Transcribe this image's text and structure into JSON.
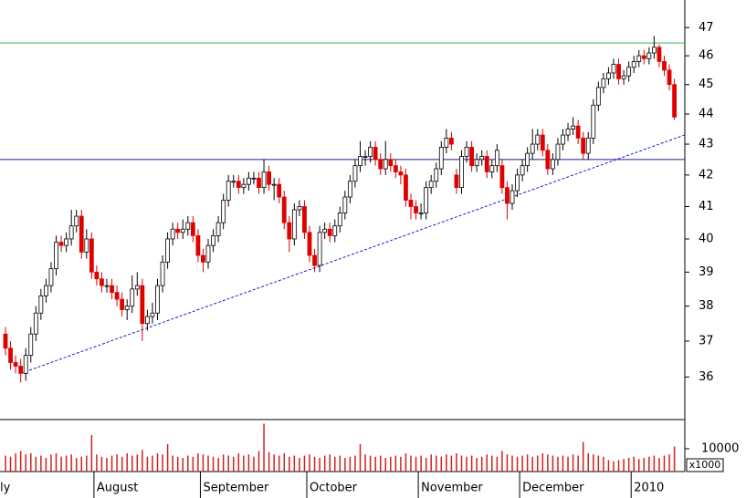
{
  "chart_data": {
    "type": "candlestick",
    "log_scale": true,
    "categories": [
      "ly",
      null,
      null,
      null,
      null,
      null,
      null,
      null,
      null,
      null,
      null,
      null,
      null,
      null,
      null,
      null,
      null,
      null,
      "August",
      null,
      null,
      null,
      null,
      null,
      null,
      null,
      null,
      null,
      null,
      null,
      null,
      null,
      null,
      null,
      null,
      null,
      null,
      null,
      null,
      "September",
      null,
      null,
      null,
      null,
      null,
      null,
      null,
      null,
      null,
      null,
      null,
      null,
      null,
      null,
      null,
      null,
      null,
      null,
      null,
      null,
      "October",
      null,
      null,
      null,
      null,
      null,
      null,
      null,
      null,
      null,
      null,
      null,
      null,
      null,
      null,
      null,
      null,
      null,
      null,
      null,
      null,
      null,
      "November",
      null,
      null,
      null,
      null,
      null,
      null,
      null,
      null,
      null,
      null,
      null,
      null,
      null,
      null,
      null,
      null,
      null,
      null,
      null,
      "December",
      null,
      null,
      null,
      null,
      null,
      null,
      null,
      null,
      null,
      null,
      null,
      null,
      null,
      null,
      null,
      null,
      null,
      null,
      null,
      null,
      null,
      "2010",
      null,
      null,
      null,
      null,
      null,
      null,
      null,
      null
    ],
    "open": [
      37.2,
      36.8,
      36.4,
      36.3,
      36.1,
      36.6,
      37.2,
      37.8,
      38.3,
      38.6,
      39.1,
      39.9,
      39.8,
      40.0,
      40.4,
      40.7,
      39.6,
      40.0,
      39.0,
      38.8,
      38.6,
      38.6,
      38.4,
      38.2,
      37.9,
      38.0,
      38.5,
      38.6,
      37.5,
      37.7,
      37.8,
      38.6,
      39.3,
      40.0,
      40.3,
      40.2,
      40.3,
      40.5,
      40.1,
      39.5,
      39.3,
      39.8,
      40.1,
      40.5,
      41.2,
      41.8,
      41.8,
      41.6,
      41.7,
      41.9,
      41.9,
      41.6,
      42.1,
      41.7,
      41.7,
      41.3,
      40.5,
      40.0,
      40.9,
      41.0,
      40.2,
      39.5,
      39.2,
      40.2,
      40.3,
      40.1,
      40.4,
      40.8,
      41.3,
      41.8,
      42.3,
      42.6,
      42.6,
      42.9,
      42.5,
      42.2,
      42.5,
      42.3,
      42.1,
      42.0,
      41.2,
      41.0,
      40.8,
      40.8,
      41.6,
      41.8,
      42.2,
      42.9,
      43.2,
      42.0,
      41.6,
      42.6,
      42.9,
      42.3,
      42.5,
      42.6,
      42.1,
      42.3,
      42.3,
      41.6,
      41.1,
      41.5,
      42.0,
      42.3,
      42.7,
      43.0,
      43.3,
      42.8,
      42.2,
      42.5,
      43.0,
      43.3,
      43.5,
      43.6,
      43.2,
      42.7,
      43.2,
      44.3,
      44.9,
      45.2,
      45.4,
      45.7,
      45.2,
      45.3,
      45.6,
      45.8,
      46.0,
      45.9,
      46.1,
      46.3,
      45.8,
      45.5,
      45.0
    ],
    "high": [
      37.4,
      37.0,
      36.6,
      36.5,
      36.8,
      37.4,
      38.0,
      38.5,
      38.8,
      39.3,
      40.1,
      40.1,
      40.2,
      40.9,
      40.9,
      40.9,
      40.3,
      40.2,
      39.2,
      39.0,
      38.8,
      38.8,
      38.6,
      38.4,
      38.2,
      38.9,
      39.0,
      38.8,
      37.9,
      38.1,
      38.8,
      39.5,
      40.2,
      40.5,
      40.5,
      40.6,
      40.7,
      40.7,
      40.3,
      39.7,
      40.0,
      40.3,
      40.7,
      41.4,
      42.0,
      42.0,
      42.0,
      41.9,
      42.1,
      42.1,
      42.1,
      42.5,
      42.3,
      41.9,
      41.9,
      41.5,
      40.7,
      41.1,
      41.2,
      41.2,
      40.4,
      39.7,
      40.4,
      40.5,
      40.5,
      40.6,
      41.0,
      41.5,
      42.0,
      42.5,
      43.1,
      42.8,
      43.1,
      43.1,
      42.7,
      43.1,
      42.7,
      42.5,
      42.3,
      42.2,
      41.4,
      41.2,
      41.1,
      41.8,
      42.0,
      42.4,
      43.1,
      43.5,
      43.4,
      42.2,
      42.8,
      43.1,
      43.1,
      42.7,
      42.8,
      42.8,
      42.5,
      43.0,
      42.5,
      41.8,
      41.7,
      42.2,
      42.5,
      42.9,
      43.5,
      43.5,
      43.5,
      43.0,
      42.7,
      43.2,
      43.5,
      43.7,
      43.9,
      43.8,
      43.4,
      43.4,
      44.5,
      45.1,
      45.4,
      45.6,
      45.9,
      45.9,
      45.5,
      45.8,
      46.0,
      46.2,
      46.2,
      46.3,
      46.7,
      46.4,
      46.0,
      45.7,
      45.2
    ],
    "low": [
      36.6,
      36.2,
      36.1,
      35.85,
      35.9,
      36.4,
      37.0,
      37.6,
      38.1,
      38.4,
      38.9,
      39.6,
      39.6,
      39.8,
      40.2,
      39.4,
      39.4,
      38.8,
      38.6,
      38.4,
      38.4,
      38.2,
      38.0,
      37.7,
      37.6,
      37.8,
      38.3,
      37.0,
      37.3,
      37.5,
      37.6,
      38.4,
      39.1,
      39.8,
      40.0,
      40.0,
      40.1,
      39.9,
      39.3,
      39.0,
      39.1,
      39.6,
      39.9,
      40.3,
      41.0,
      41.6,
      41.4,
      41.4,
      41.5,
      41.7,
      41.4,
      41.4,
      41.5,
      41.2,
      41.1,
      40.3,
      39.6,
      39.8,
      40.7,
      40.0,
      39.3,
      39.0,
      39.0,
      40.0,
      39.9,
      39.9,
      40.2,
      40.6,
      41.1,
      41.6,
      42.1,
      42.3,
      42.4,
      42.3,
      42.0,
      42.0,
      42.1,
      41.9,
      41.7,
      41.0,
      40.6,
      40.6,
      40.6,
      40.6,
      41.4,
      41.6,
      42.0,
      42.7,
      42.8,
      41.4,
      41.4,
      42.4,
      42.1,
      42.1,
      42.3,
      41.9,
      41.9,
      42.1,
      41.4,
      40.6,
      40.9,
      41.3,
      41.8,
      42.1,
      42.5,
      42.8,
      42.6,
      42.0,
      42.0,
      42.3,
      42.8,
      43.1,
      43.3,
      43.0,
      42.5,
      42.5,
      43.0,
      44.1,
      44.7,
      45.0,
      45.2,
      45.0,
      45.0,
      45.1,
      45.4,
      45.6,
      45.7,
      45.7,
      45.9,
      45.6,
      45.3,
      44.8,
      43.8
    ],
    "close": [
      36.8,
      36.4,
      36.3,
      36.1,
      36.6,
      37.2,
      37.8,
      38.3,
      38.6,
      39.1,
      39.9,
      39.8,
      40.0,
      40.4,
      40.7,
      39.6,
      40.0,
      39.0,
      38.8,
      38.6,
      38.6,
      38.4,
      38.2,
      37.9,
      38.0,
      38.5,
      38.6,
      37.5,
      37.7,
      37.8,
      38.6,
      39.3,
      40.0,
      40.3,
      40.2,
      40.3,
      40.5,
      40.1,
      39.5,
      39.3,
      39.8,
      40.1,
      40.5,
      41.2,
      41.8,
      41.8,
      41.6,
      41.7,
      41.9,
      41.9,
      41.6,
      42.1,
      41.7,
      41.7,
      41.3,
      40.5,
      40.0,
      40.9,
      41.0,
      40.2,
      39.5,
      39.2,
      40.2,
      40.3,
      40.1,
      40.4,
      40.8,
      41.3,
      41.8,
      42.3,
      42.6,
      42.6,
      42.9,
      42.5,
      42.2,
      42.5,
      42.3,
      42.1,
      42.0,
      41.2,
      41.0,
      40.8,
      40.8,
      41.6,
      41.8,
      42.2,
      42.9,
      43.2,
      43.0,
      41.6,
      42.6,
      42.9,
      42.3,
      42.5,
      42.6,
      42.1,
      42.3,
      42.8,
      41.6,
      41.1,
      41.5,
      42.0,
      42.3,
      42.7,
      43.0,
      43.3,
      42.8,
      42.2,
      42.5,
      43.0,
      43.3,
      43.5,
      43.6,
      43.2,
      42.7,
      43.2,
      44.3,
      44.9,
      45.2,
      45.4,
      45.7,
      45.2,
      45.3,
      45.6,
      45.8,
      46.0,
      45.9,
      46.1,
      46.3,
      45.8,
      45.5,
      45.0,
      43.9
    ],
    "volume": [
      7000,
      6500,
      8000,
      9000,
      7500,
      8000,
      6500,
      7000,
      6000,
      7500,
      8000,
      6500,
      7000,
      7500,
      6000,
      6500,
      7000,
      16000,
      7500,
      6500,
      6000,
      7000,
      7500,
      6500,
      8000,
      7000,
      7500,
      9500,
      6500,
      7000,
      8000,
      7500,
      12000,
      7000,
      6500,
      6000,
      7000,
      6500,
      8000,
      7500,
      7000,
      6500,
      6000,
      7500,
      7000,
      6500,
      8000,
      7000,
      7500,
      6500,
      9000,
      21000,
      8500,
      7500,
      7000,
      8000,
      6500,
      7000,
      6000,
      7000,
      7500,
      6500,
      6000,
      7000,
      7500,
      6500,
      7000,
      6000,
      6500,
      7000,
      12000,
      7500,
      7000,
      6500,
      7000,
      6000,
      6500,
      7000,
      6500,
      8000,
      7000,
      6500,
      7000,
      6000,
      7500,
      7000,
      6500,
      7500,
      7000,
      8000,
      7000,
      6500,
      7000,
      6000,
      6500,
      7500,
      7000,
      6500,
      9000,
      7500,
      7000,
      6500,
      7000,
      7500,
      6500,
      7000,
      8000,
      7500,
      7000,
      6500,
      7000,
      6500,
      7500,
      7000,
      13000,
      8000,
      7500,
      7000,
      6500,
      5000,
      4500,
      5000,
      5500,
      6000,
      6500,
      5500,
      6000,
      6500,
      7000,
      6000,
      7000,
      7500,
      11000
    ],
    "up_color": "#ffffff",
    "down_color": "#e00000",
    "volume_color": "#d02020",
    "ylim": [
      34.85,
      48
    ],
    "yticks": [
      36,
      37,
      38,
      39,
      40,
      41,
      42,
      43,
      44,
      45,
      46,
      47
    ],
    "volume_lim": [
      0,
      22800
    ],
    "volume_ticks": [
      10000
    ],
    "volume_unit_label": "x1000",
    "hlines": [
      {
        "value": 46.45,
        "color": "#3cb043"
      },
      {
        "value": 42.5,
        "color": "#1a1a9a"
      }
    ],
    "trendline": {
      "x": [
        3,
        134
      ],
      "y": [
        36.1,
        43.3
      ],
      "color": "#1a1acc"
    }
  }
}
